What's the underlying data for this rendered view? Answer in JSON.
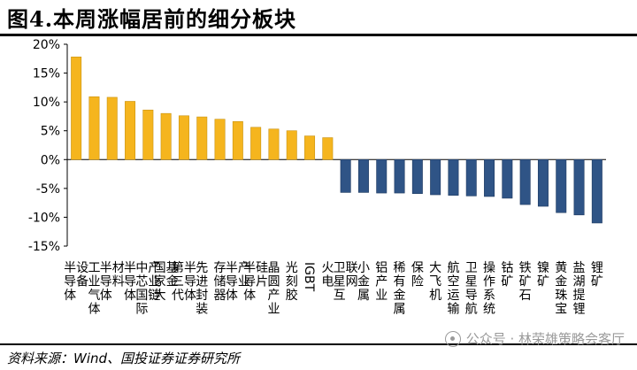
{
  "header": {
    "title": "图4.本周涨幅居前的细分板块"
  },
  "footer": {
    "source": "资料来源：Wind、国投证券证券研究所",
    "watermark": "公众号 · 林荣雄策略会客厅"
  },
  "colors": {
    "positive": "#F5B51E",
    "positive_edge": "#C99212",
    "negative": "#2F5486",
    "negative_edge": "#1F3A60"
  },
  "chart_data": {
    "type": "bar",
    "title": "",
    "xlabel": "",
    "ylabel": "",
    "ylim": [
      -15,
      20
    ],
    "yticks": [
      -15,
      -10,
      -5,
      0,
      5,
      10,
      15,
      20
    ],
    "ytick_labels": [
      "-15%",
      "-10%",
      "-5%",
      "0%",
      "5%",
      "10%",
      "15%",
      "20%"
    ],
    "grid": false,
    "categories": [
      "半导体设备",
      "工业气体",
      "半导体材料",
      "半导体",
      "中芯国际产业链",
      "国家大基金",
      "第三代半导体",
      "先进封装",
      "存储器",
      "半导体产业",
      "半导体硅片",
      "晶圆产业",
      "光刻胶",
      "IGBT",
      "火电",
      "卫星互联网",
      "小金属",
      "铝产业",
      "稀有金属",
      "保险",
      "大飞机",
      "航空运输",
      "卫星导航",
      "操作系统",
      "钴矿",
      "铁矿石",
      "镍矿",
      "黄金珠宝",
      "盐湖提锂",
      "锂矿"
    ],
    "values": [
      17.8,
      10.9,
      10.8,
      10.1,
      8.6,
      8.0,
      7.6,
      7.4,
      7.0,
      6.6,
      5.6,
      5.3,
      5.0,
      4.1,
      3.8,
      -5.7,
      -5.7,
      -5.8,
      -5.8,
      -5.9,
      -6.1,
      -6.2,
      -6.3,
      -6.4,
      -6.7,
      -7.8,
      -8.1,
      -9.2,
      -9.6,
      -11.0
    ]
  }
}
